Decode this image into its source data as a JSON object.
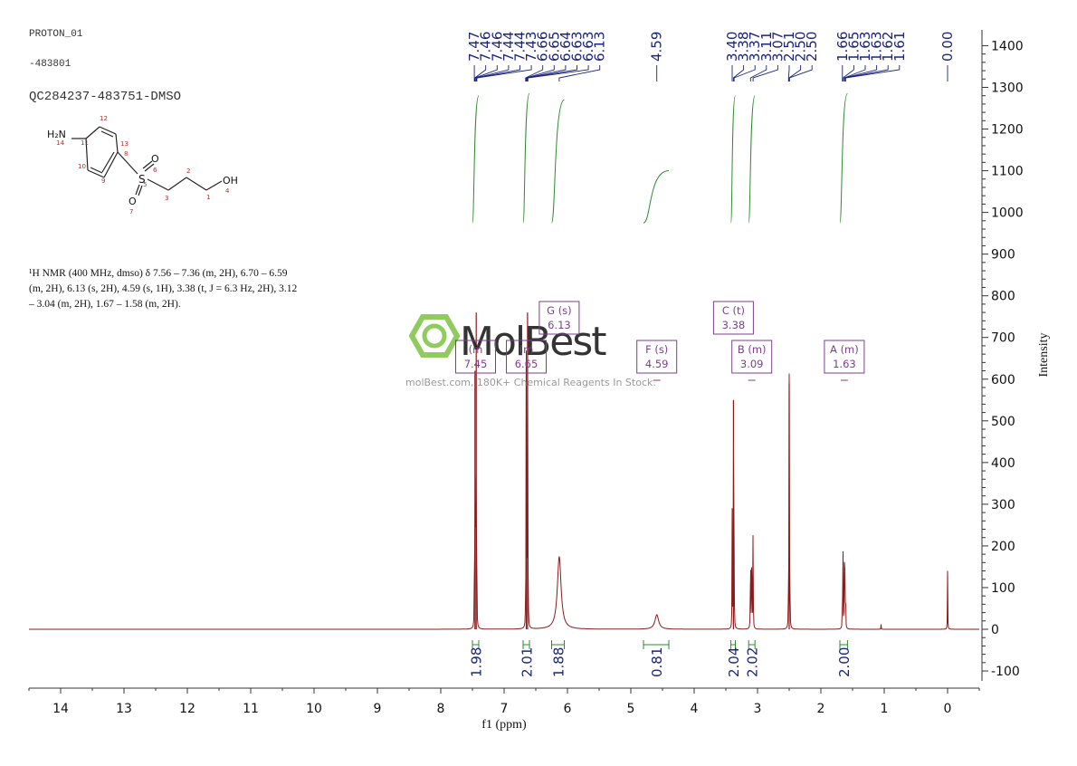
{
  "header": {
    "line1": "PROTON_01",
    "line2": "-483801",
    "line3": "QC284237-483751-DMSO"
  },
  "structure": {
    "amine": "H₂N",
    "hydroxyl": "OH",
    "sulfur": "S",
    "oxygen_top": "O",
    "oxygen_bottom": "O",
    "atom_numbers": [
      "14",
      "11",
      "12",
      "13",
      "10",
      "9",
      "8",
      "6",
      "5",
      "7",
      "3",
      "2",
      "1",
      "4"
    ]
  },
  "nmr_text": {
    "line1": "¹H NMR (400 MHz, dmso) δ 7.56 – 7.36 (m, 2H), 6.70 – 6.59",
    "line2": "(m, 2H), 6.13 (s, 2H), 4.59 (s, 1H), 3.38 (t, J = 6.3 Hz, 2H), 3.12",
    "line3": "– 3.04 (m, 2H), 1.67 – 1.58 (m, 2H)."
  },
  "watermark": {
    "brand": "MolBest",
    "tagline": "molBest.com, 180K+ Chemical Reagents In Stock."
  },
  "colors": {
    "spectrum": "#8b1a1a",
    "integral": "#2e8b2e",
    "label_blue": "#1a237e",
    "multiplet_box": "#7b3f8c",
    "axis": "#333333",
    "logo_green": "#7dc242"
  },
  "chart_data": {
    "type": "line",
    "title": "",
    "xlabel": "f1 (ppm)",
    "ylabel": "Intensity",
    "xlim": [
      14.5,
      -0.5
    ],
    "ylim": [
      -130,
      1440
    ],
    "x_ticks": [
      14,
      13,
      12,
      11,
      10,
      9,
      8,
      7,
      6,
      5,
      4,
      3,
      2,
      1,
      0
    ],
    "y_ticks": [
      -100,
      0,
      100,
      200,
      300,
      400,
      500,
      600,
      700,
      800,
      900,
      1000,
      1100,
      1200,
      1300,
      1400
    ],
    "peaks": [
      {
        "ppm": 7.47,
        "height": 100
      },
      {
        "ppm": 7.46,
        "height": 620
      },
      {
        "ppm": 7.45,
        "height": 160
      },
      {
        "ppm": 7.44,
        "height": 760
      },
      {
        "ppm": 7.43,
        "height": 100
      },
      {
        "ppm": 6.66,
        "height": 100
      },
      {
        "ppm": 6.65,
        "height": 640
      },
      {
        "ppm": 6.64,
        "height": 160
      },
      {
        "ppm": 6.63,
        "height": 760
      },
      {
        "ppm": 6.62,
        "height": 100
      },
      {
        "ppm": 6.13,
        "height": 175,
        "broad": true
      },
      {
        "ppm": 4.59,
        "height": 35,
        "broad": true
      },
      {
        "ppm": 3.4,
        "height": 280
      },
      {
        "ppm": 3.38,
        "height": 550
      },
      {
        "ppm": 3.37,
        "height": 280
      },
      {
        "ppm": 3.11,
        "height": 310
      },
      {
        "ppm": 3.09,
        "height": 320
      },
      {
        "ppm": 3.07,
        "height": 290
      },
      {
        "ppm": 2.51,
        "height": 200
      },
      {
        "ppm": 2.5,
        "height": 590
      },
      {
        "ppm": 2.49,
        "height": 200
      },
      {
        "ppm": 1.66,
        "height": 130
      },
      {
        "ppm": 1.65,
        "height": 175
      },
      {
        "ppm": 1.63,
        "height": 190
      },
      {
        "ppm": 1.62,
        "height": 165
      },
      {
        "ppm": 1.61,
        "height": 120
      },
      {
        "ppm": 1.05,
        "height": 12
      },
      {
        "ppm": 0.0,
        "height": 140
      }
    ],
    "peak_labels": [
      {
        "text": "7.47",
        "ppm": 7.47
      },
      {
        "text": "7.46",
        "ppm": 7.46
      },
      {
        "text": "7.46",
        "ppm": 7.455
      },
      {
        "text": "7.44",
        "ppm": 7.44
      },
      {
        "text": "7.44",
        "ppm": 7.435
      },
      {
        "text": "7.43",
        "ppm": 7.43
      },
      {
        "text": "6.66",
        "ppm": 6.66
      },
      {
        "text": "6.65",
        "ppm": 6.65
      },
      {
        "text": "6.64",
        "ppm": 6.64
      },
      {
        "text": "6.63",
        "ppm": 6.63
      },
      {
        "text": "6.63",
        "ppm": 6.625
      },
      {
        "text": "6.13",
        "ppm": 6.13
      },
      {
        "text": "4.59",
        "ppm": 4.59
      },
      {
        "text": "3.40",
        "ppm": 3.4
      },
      {
        "text": "3.38",
        "ppm": 3.38
      },
      {
        "text": "3.37",
        "ppm": 3.37
      },
      {
        "text": "3.11",
        "ppm": 3.11
      },
      {
        "text": "3.07",
        "ppm": 3.07
      },
      {
        "text": "2.51",
        "ppm": 2.51
      },
      {
        "text": "2.50",
        "ppm": 2.5
      },
      {
        "text": "2.50",
        "ppm": 2.495
      },
      {
        "text": "1.66",
        "ppm": 1.66
      },
      {
        "text": "1.65",
        "ppm": 1.65
      },
      {
        "text": "1.63",
        "ppm": 1.63
      },
      {
        "text": "1.63",
        "ppm": 1.625
      },
      {
        "text": "1.62",
        "ppm": 1.62
      },
      {
        "text": "1.61",
        "ppm": 1.61
      },
      {
        "text": "0.00",
        "ppm": 0.0
      }
    ],
    "integrals": [
      {
        "from": 7.5,
        "to": 7.4,
        "value": "1.98",
        "level_start": 975,
        "level_end": 1280
      },
      {
        "from": 6.7,
        "to": 6.6,
        "value": "2.01",
        "level_start": 975,
        "level_end": 1285
      },
      {
        "from": 6.25,
        "to": 6.05,
        "value": "1.88",
        "level_start": 975,
        "level_end": 1270
      },
      {
        "from": 4.8,
        "to": 4.4,
        "value": "0.81",
        "level_start": 975,
        "level_end": 1100
      },
      {
        "from": 3.42,
        "to": 3.35,
        "value": "2.04",
        "level_start": 975,
        "level_end": 1280
      },
      {
        "from": 3.14,
        "to": 3.04,
        "value": "2.02",
        "level_start": 975,
        "level_end": 1280
      },
      {
        "from": 1.7,
        "to": 1.58,
        "value": "2.00",
        "level_start": 975,
        "level_end": 1285
      }
    ],
    "multiplets": [
      {
        "label": "(m",
        "shift": "7.45",
        "center": 7.45
      },
      {
        "label": "(m",
        "shift": "6.65",
        "center": 6.65
      },
      {
        "label": "G (s)",
        "shift": "6.13",
        "center": 6.13
      },
      {
        "label": "F (s)",
        "shift": "4.59",
        "center": 4.59
      },
      {
        "label": "C (t)",
        "shift": "3.38",
        "center": 3.38
      },
      {
        "label": "B (m)",
        "shift": "3.09",
        "center": 3.09
      },
      {
        "label": "A (m)",
        "shift": "1.63",
        "center": 1.63
      }
    ]
  }
}
